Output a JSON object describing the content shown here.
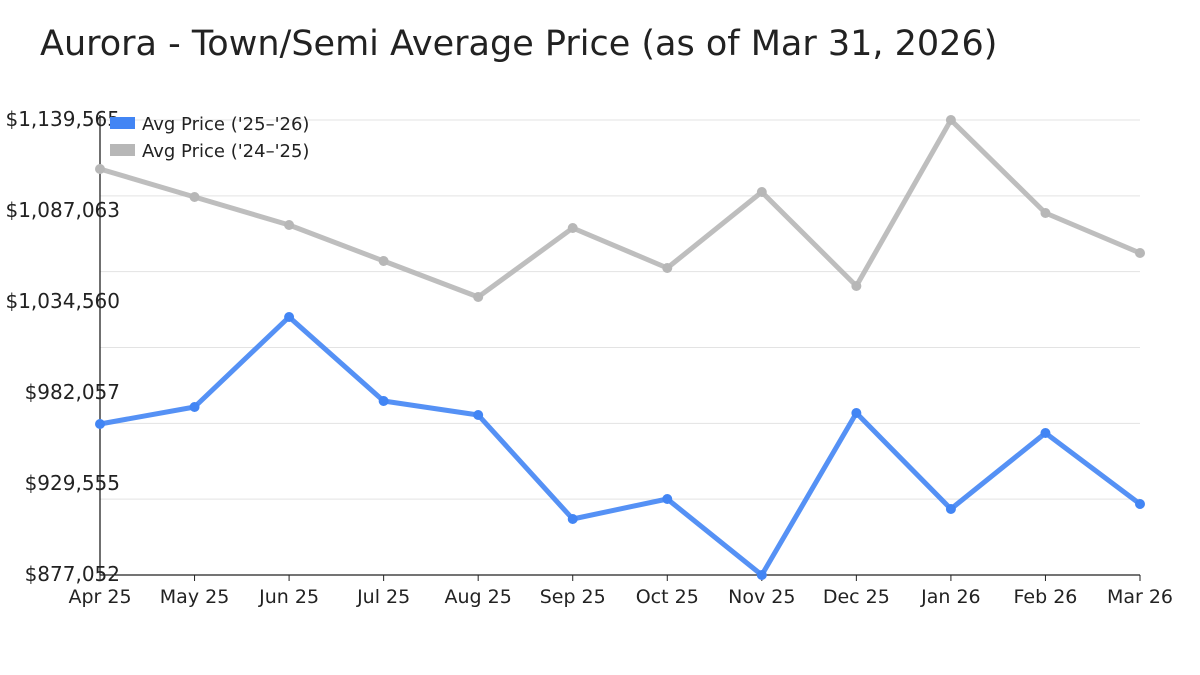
{
  "chart_data": {
    "type": "line",
    "title": "Aurora - Town/Semi Average Price (as of Mar 31, 2026)",
    "xlabel": "",
    "ylabel": "",
    "categories": [
      "Apr 25",
      "May 25",
      "Jun 25",
      "Jul 25",
      "Aug 25",
      "Sep 25",
      "Oct 25",
      "Nov 25",
      "Dec 25",
      "Jan 26",
      "Feb 26",
      "Mar 26"
    ],
    "ylim": [
      877052,
      1139565
    ],
    "yticks": [
      "$1,139,565",
      "$1,087,063",
      "$1,034,560",
      "$982,057",
      "$929,555",
      "$877,052"
    ],
    "grid": true,
    "legend_position": "top-left",
    "series": [
      {
        "name": "Avg Price ('25–'26)",
        "color": "#4285f4",
        "values": [
          964172,
          973980,
          1025905,
          977441,
          969364,
          909361,
          920900,
          877052,
          970518,
          915131,
          958979,
          918015
        ]
      },
      {
        "name": "Avg Price ('24–'25)",
        "color": "#b7b7b7",
        "values": [
          1111294,
          1095139,
          1078985,
          1058215,
          1037444,
          1077254,
          1054176,
          1098024,
          1043791,
          1139565,
          1085908,
          1062830
        ]
      }
    ]
  }
}
